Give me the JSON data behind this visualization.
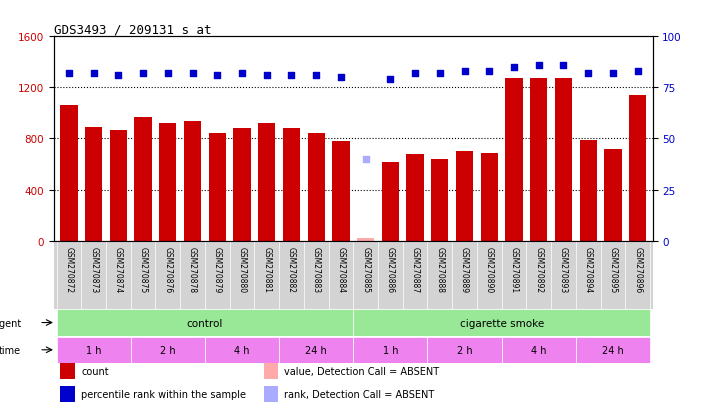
{
  "title": "GDS3493 / 209131_s_at",
  "samples": [
    "GSM270872",
    "GSM270873",
    "GSM270874",
    "GSM270875",
    "GSM270876",
    "GSM270878",
    "GSM270879",
    "GSM270880",
    "GSM270881",
    "GSM270882",
    "GSM270883",
    "GSM270884",
    "GSM270885",
    "GSM270886",
    "GSM270887",
    "GSM270888",
    "GSM270889",
    "GSM270890",
    "GSM270891",
    "GSM270892",
    "GSM270893",
    "GSM270894",
    "GSM270895",
    "GSM270896"
  ],
  "counts": [
    1060,
    890,
    865,
    970,
    920,
    940,
    840,
    880,
    920,
    880,
    840,
    780,
    25,
    620,
    680,
    640,
    700,
    690,
    1270,
    1270,
    1270,
    790,
    720,
    1140
  ],
  "percentile_ranks": [
    82,
    82,
    81,
    82,
    82,
    82,
    81,
    82,
    81,
    81,
    81,
    80,
    40,
    79,
    82,
    82,
    83,
    83,
    85,
    86,
    86,
    82,
    82,
    83
  ],
  "absent_value_indices": [
    12
  ],
  "absent_rank_indices": [
    12
  ],
  "bar_color": "#cc0000",
  "rank_color": "#0000cc",
  "absent_value_color": "#ffaaaa",
  "absent_rank_color": "#aaaaff",
  "ylim_left": [
    0,
    1600
  ],
  "ylim_right": [
    0,
    100
  ],
  "yticks_left": [
    0,
    400,
    800,
    1200,
    1600
  ],
  "yticks_right": [
    0,
    25,
    50,
    75,
    100
  ],
  "grid_values": [
    400,
    800,
    1200
  ],
  "time_groups": [
    {
      "label": "1 h",
      "start": 0,
      "end": 3
    },
    {
      "label": "2 h",
      "start": 3,
      "end": 6
    },
    {
      "label": "4 h",
      "start": 6,
      "end": 9
    },
    {
      "label": "24 h",
      "start": 9,
      "end": 12
    },
    {
      "label": "1 h",
      "start": 12,
      "end": 15
    },
    {
      "label": "2 h",
      "start": 15,
      "end": 18
    },
    {
      "label": "4 h",
      "start": 18,
      "end": 21
    },
    {
      "label": "24 h",
      "start": 21,
      "end": 24
    }
  ],
  "legend_items": [
    {
      "label": "count",
      "color": "#cc0000"
    },
    {
      "label": "percentile rank within the sample",
      "color": "#0000cc"
    },
    {
      "label": "value, Detection Call = ABSENT",
      "color": "#ffaaaa"
    },
    {
      "label": "rank, Detection Call = ABSENT",
      "color": "#aaaaff"
    }
  ],
  "bar_width": 0.7,
  "background_color": "#ffffff",
  "agent_green": "#98e898",
  "time_purple": "#ee82ee",
  "sample_bg": "#d3d3d3"
}
